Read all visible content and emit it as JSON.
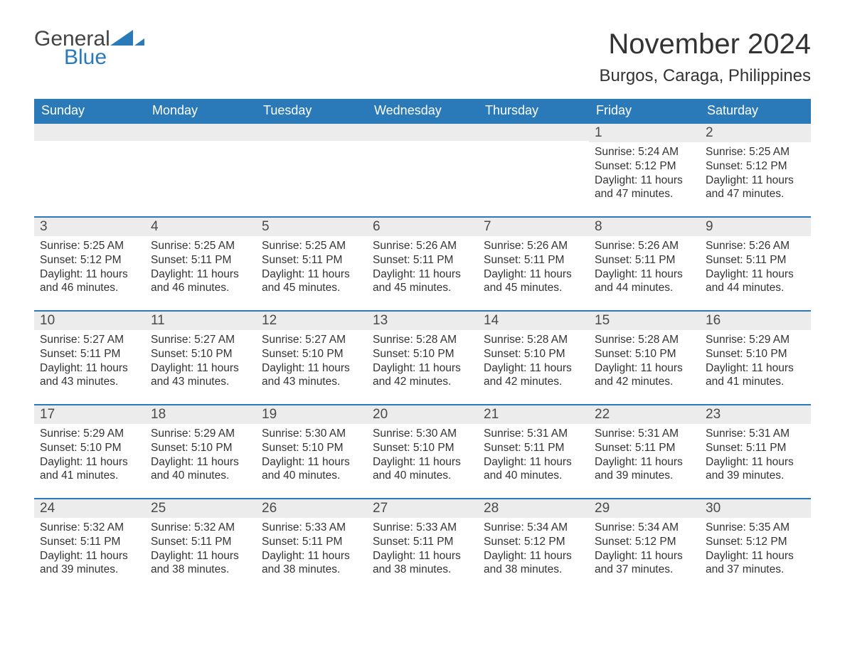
{
  "brand": {
    "word1": "General",
    "word2": "Blue"
  },
  "colors": {
    "primary": "#2a7ab9",
    "header_bg": "#2a7ab9",
    "row_gray": "#ececec",
    "text": "#3a3a3a"
  },
  "title": "November 2024",
  "location": "Burgos, Caraga, Philippines",
  "weekdays": [
    "Sunday",
    "Monday",
    "Tuesday",
    "Wednesday",
    "Thursday",
    "Friday",
    "Saturday"
  ],
  "labels": {
    "sunrise": "Sunrise:",
    "sunset": "Sunset:",
    "daylight": "Daylight:"
  },
  "weeks": [
    [
      null,
      null,
      null,
      null,
      null,
      {
        "d": "1",
        "sunrise": "5:24 AM",
        "sunset": "5:12 PM",
        "daylight": "11 hours and 47 minutes."
      },
      {
        "d": "2",
        "sunrise": "5:25 AM",
        "sunset": "5:12 PM",
        "daylight": "11 hours and 47 minutes."
      }
    ],
    [
      {
        "d": "3",
        "sunrise": "5:25 AM",
        "sunset": "5:12 PM",
        "daylight": "11 hours and 46 minutes."
      },
      {
        "d": "4",
        "sunrise": "5:25 AM",
        "sunset": "5:11 PM",
        "daylight": "11 hours and 46 minutes."
      },
      {
        "d": "5",
        "sunrise": "5:25 AM",
        "sunset": "5:11 PM",
        "daylight": "11 hours and 45 minutes."
      },
      {
        "d": "6",
        "sunrise": "5:26 AM",
        "sunset": "5:11 PM",
        "daylight": "11 hours and 45 minutes."
      },
      {
        "d": "7",
        "sunrise": "5:26 AM",
        "sunset": "5:11 PM",
        "daylight": "11 hours and 45 minutes."
      },
      {
        "d": "8",
        "sunrise": "5:26 AM",
        "sunset": "5:11 PM",
        "daylight": "11 hours and 44 minutes."
      },
      {
        "d": "9",
        "sunrise": "5:26 AM",
        "sunset": "5:11 PM",
        "daylight": "11 hours and 44 minutes."
      }
    ],
    [
      {
        "d": "10",
        "sunrise": "5:27 AM",
        "sunset": "5:11 PM",
        "daylight": "11 hours and 43 minutes."
      },
      {
        "d": "11",
        "sunrise": "5:27 AM",
        "sunset": "5:10 PM",
        "daylight": "11 hours and 43 minutes."
      },
      {
        "d": "12",
        "sunrise": "5:27 AM",
        "sunset": "5:10 PM",
        "daylight": "11 hours and 43 minutes."
      },
      {
        "d": "13",
        "sunrise": "5:28 AM",
        "sunset": "5:10 PM",
        "daylight": "11 hours and 42 minutes."
      },
      {
        "d": "14",
        "sunrise": "5:28 AM",
        "sunset": "5:10 PM",
        "daylight": "11 hours and 42 minutes."
      },
      {
        "d": "15",
        "sunrise": "5:28 AM",
        "sunset": "5:10 PM",
        "daylight": "11 hours and 42 minutes."
      },
      {
        "d": "16",
        "sunrise": "5:29 AM",
        "sunset": "5:10 PM",
        "daylight": "11 hours and 41 minutes."
      }
    ],
    [
      {
        "d": "17",
        "sunrise": "5:29 AM",
        "sunset": "5:10 PM",
        "daylight": "11 hours and 41 minutes."
      },
      {
        "d": "18",
        "sunrise": "5:29 AM",
        "sunset": "5:10 PM",
        "daylight": "11 hours and 40 minutes."
      },
      {
        "d": "19",
        "sunrise": "5:30 AM",
        "sunset": "5:10 PM",
        "daylight": "11 hours and 40 minutes."
      },
      {
        "d": "20",
        "sunrise": "5:30 AM",
        "sunset": "5:10 PM",
        "daylight": "11 hours and 40 minutes."
      },
      {
        "d": "21",
        "sunrise": "5:31 AM",
        "sunset": "5:11 PM",
        "daylight": "11 hours and 40 minutes."
      },
      {
        "d": "22",
        "sunrise": "5:31 AM",
        "sunset": "5:11 PM",
        "daylight": "11 hours and 39 minutes."
      },
      {
        "d": "23",
        "sunrise": "5:31 AM",
        "sunset": "5:11 PM",
        "daylight": "11 hours and 39 minutes."
      }
    ],
    [
      {
        "d": "24",
        "sunrise": "5:32 AM",
        "sunset": "5:11 PM",
        "daylight": "11 hours and 39 minutes."
      },
      {
        "d": "25",
        "sunrise": "5:32 AM",
        "sunset": "5:11 PM",
        "daylight": "11 hours and 38 minutes."
      },
      {
        "d": "26",
        "sunrise": "5:33 AM",
        "sunset": "5:11 PM",
        "daylight": "11 hours and 38 minutes."
      },
      {
        "d": "27",
        "sunrise": "5:33 AM",
        "sunset": "5:11 PM",
        "daylight": "11 hours and 38 minutes."
      },
      {
        "d": "28",
        "sunrise": "5:34 AM",
        "sunset": "5:12 PM",
        "daylight": "11 hours and 38 minutes."
      },
      {
        "d": "29",
        "sunrise": "5:34 AM",
        "sunset": "5:12 PM",
        "daylight": "11 hours and 37 minutes."
      },
      {
        "d": "30",
        "sunrise": "5:35 AM",
        "sunset": "5:12 PM",
        "daylight": "11 hours and 37 minutes."
      }
    ]
  ]
}
